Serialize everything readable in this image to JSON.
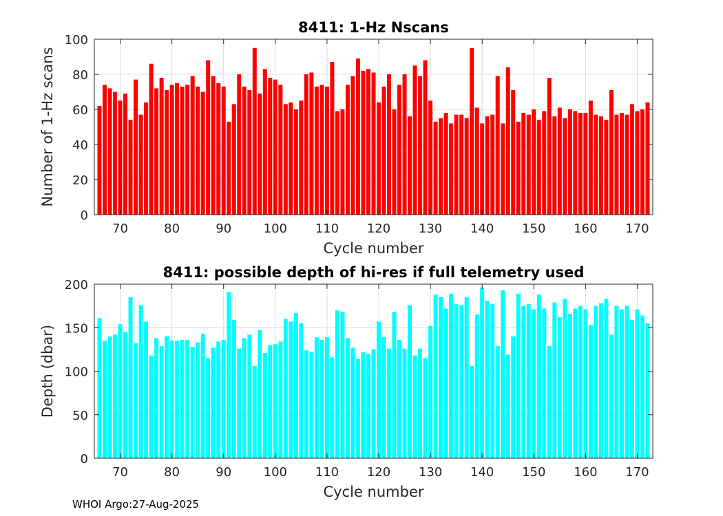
{
  "chart_data": [
    {
      "type": "bar",
      "title": "8411: 1-Hz Nscans",
      "xlabel": "Cycle number",
      "ylabel": "Number of 1-Hz scans",
      "xlim": [
        65,
        173
      ],
      "ylim": [
        0,
        100
      ],
      "xticks": [
        70,
        80,
        90,
        100,
        110,
        120,
        130,
        140,
        150,
        160,
        170
      ],
      "yticks": [
        0,
        20,
        40,
        60,
        80,
        100
      ],
      "grid": true,
      "color": "#ff0000",
      "x": [
        66,
        67,
        68,
        69,
        70,
        71,
        72,
        73,
        74,
        75,
        76,
        77,
        78,
        79,
        80,
        81,
        82,
        83,
        84,
        85,
        86,
        87,
        88,
        89,
        90,
        91,
        92,
        93,
        94,
        95,
        96,
        97,
        98,
        99,
        100,
        101,
        102,
        103,
        104,
        105,
        106,
        107,
        108,
        109,
        110,
        111,
        112,
        113,
        114,
        115,
        116,
        117,
        118,
        119,
        120,
        121,
        122,
        123,
        124,
        125,
        126,
        127,
        128,
        129,
        130,
        131,
        132,
        133,
        134,
        135,
        136,
        137,
        138,
        139,
        140,
        141,
        142,
        143,
        144,
        145,
        146,
        147,
        148,
        149,
        150,
        151,
        152,
        153,
        154,
        155,
        156,
        157,
        158,
        159,
        160,
        161,
        162,
        163,
        164,
        165,
        166,
        167,
        168,
        169,
        170,
        171,
        172
      ],
      "values": [
        62,
        74,
        72,
        70,
        65,
        69,
        54,
        77,
        57,
        64,
        86,
        72,
        78,
        71,
        74,
        75,
        73,
        74,
        79,
        73,
        70,
        88,
        79,
        75,
        73,
        53,
        63,
        80,
        73,
        71,
        95,
        69,
        83,
        78,
        77,
        74,
        63,
        64,
        60,
        65,
        80,
        81,
        73,
        74,
        73,
        87,
        59,
        60,
        74,
        79,
        89,
        82,
        83,
        81,
        64,
        73,
        80,
        60,
        74,
        80,
        56,
        85,
        79,
        88,
        65,
        53,
        55,
        58,
        52,
        57,
        57,
        55,
        95,
        61,
        52,
        56,
        57,
        79,
        52,
        84,
        71,
        53,
        58,
        57,
        60,
        54,
        59,
        78,
        56,
        61,
        55,
        60,
        59,
        58,
        58,
        65,
        57,
        56,
        54,
        71,
        57,
        58,
        57,
        63,
        59,
        60,
        64
      ]
    },
    {
      "type": "bar",
      "title": "8411: possible depth of hi-res if full telemetry used",
      "xlabel": "Cycle number",
      "ylabel": "Depth (dbar)",
      "xlim": [
        65,
        173
      ],
      "ylim": [
        0,
        200
      ],
      "xticks": [
        70,
        80,
        90,
        100,
        110,
        120,
        130,
        140,
        150,
        160,
        170
      ],
      "yticks": [
        0,
        50,
        100,
        150,
        200
      ],
      "grid": true,
      "color": "#00ffff",
      "x": [
        66,
        67,
        68,
        69,
        70,
        71,
        72,
        73,
        74,
        75,
        76,
        77,
        78,
        79,
        80,
        81,
        82,
        83,
        84,
        85,
        86,
        87,
        88,
        89,
        90,
        91,
        92,
        93,
        94,
        95,
        96,
        97,
        98,
        99,
        100,
        101,
        102,
        103,
        104,
        105,
        106,
        107,
        108,
        109,
        110,
        111,
        112,
        113,
        114,
        115,
        116,
        117,
        118,
        119,
        120,
        121,
        122,
        123,
        124,
        125,
        126,
        127,
        128,
        129,
        130,
        131,
        132,
        133,
        134,
        135,
        136,
        137,
        138,
        139,
        140,
        141,
        142,
        143,
        144,
        145,
        146,
        147,
        148,
        149,
        150,
        151,
        152,
        153,
        154,
        155,
        156,
        157,
        158,
        159,
        160,
        161,
        162,
        163,
        164,
        165,
        166,
        167,
        168,
        169,
        170,
        171,
        172
      ],
      "values": [
        161,
        135,
        140,
        142,
        154,
        145,
        185,
        132,
        176,
        157,
        118,
        138,
        129,
        140,
        135,
        135,
        136,
        136,
        128,
        133,
        143,
        115,
        127,
        134,
        136,
        191,
        159,
        126,
        138,
        142,
        106,
        147,
        121,
        130,
        131,
        134,
        160,
        157,
        167,
        155,
        124,
        122,
        139,
        136,
        139,
        116,
        170,
        168,
        138,
        127,
        114,
        122,
        120,
        125,
        157,
        139,
        126,
        168,
        136,
        126,
        176,
        118,
        126,
        115,
        152,
        188,
        185,
        172,
        189,
        177,
        176,
        185,
        106,
        165,
        196,
        181,
        177,
        129,
        193,
        119,
        140,
        189,
        175,
        177,
        171,
        188,
        172,
        129,
        179,
        162,
        183,
        166,
        172,
        175,
        171,
        153,
        175,
        178,
        183,
        142,
        175,
        171,
        175,
        159,
        171,
        164,
        155
      ]
    }
  ],
  "footer": {
    "text": "WHOI Argo:27-Aug-2025"
  }
}
